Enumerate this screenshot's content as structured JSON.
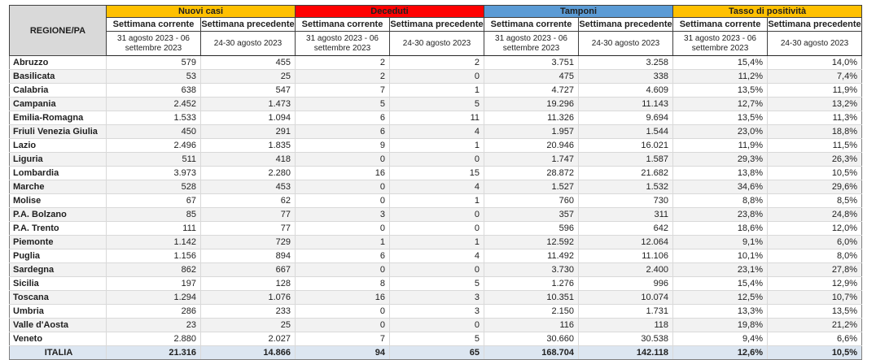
{
  "chart_data": {
    "type": "table",
    "region_header": "REGIONE/PA",
    "groups": [
      {
        "label": "Nuovi casi",
        "color": "#FFC000"
      },
      {
        "label": "Deceduti",
        "color": "#FF0000"
      },
      {
        "label": "Tamponi",
        "color": "#5B9BD5"
      },
      {
        "label": "Tasso di positività",
        "color": "#FFC000"
      }
    ],
    "subheaders": {
      "current": "Settimana corrente",
      "previous": "Settimana precedente"
    },
    "periods": {
      "current": "31 agosto 2023 - 06 settembre 2023",
      "previous": "24-30 agosto 2023"
    },
    "column_keys": [
      "nuovi-casi-corrente",
      "nuovi-casi-precedente",
      "deceduti-corrente",
      "deceduti-precedente",
      "tamponi-corrente",
      "tamponi-precedente",
      "tasso-positivita-corrente",
      "tasso-positivita-precedente"
    ],
    "rows": [
      {
        "region": "Abruzzo",
        "values": [
          "579",
          "455",
          "2",
          "2",
          "3.751",
          "3.258",
          "15,4%",
          "14,0%"
        ]
      },
      {
        "region": "Basilicata",
        "values": [
          "53",
          "25",
          "2",
          "0",
          "475",
          "338",
          "11,2%",
          "7,4%"
        ]
      },
      {
        "region": "Calabria",
        "values": [
          "638",
          "547",
          "7",
          "1",
          "4.727",
          "4.609",
          "13,5%",
          "11,9%"
        ]
      },
      {
        "region": "Campania",
        "values": [
          "2.452",
          "1.473",
          "5",
          "5",
          "19.296",
          "11.143",
          "12,7%",
          "13,2%"
        ]
      },
      {
        "region": "Emilia-Romagna",
        "values": [
          "1.533",
          "1.094",
          "6",
          "11",
          "11.326",
          "9.694",
          "13,5%",
          "11,3%"
        ]
      },
      {
        "region": "Friuli Venezia Giulia",
        "values": [
          "450",
          "291",
          "6",
          "4",
          "1.957",
          "1.544",
          "23,0%",
          "18,8%"
        ]
      },
      {
        "region": "Lazio",
        "values": [
          "2.496",
          "1.835",
          "9",
          "1",
          "20.946",
          "16.021",
          "11,9%",
          "11,5%"
        ]
      },
      {
        "region": "Liguria",
        "values": [
          "511",
          "418",
          "0",
          "0",
          "1.747",
          "1.587",
          "29,3%",
          "26,3%"
        ]
      },
      {
        "region": "Lombardia",
        "values": [
          "3.973",
          "2.280",
          "16",
          "15",
          "28.872",
          "21.682",
          "13,8%",
          "10,5%"
        ]
      },
      {
        "region": "Marche",
        "values": [
          "528",
          "453",
          "0",
          "4",
          "1.527",
          "1.532",
          "34,6%",
          "29,6%"
        ]
      },
      {
        "region": "Molise",
        "values": [
          "67",
          "62",
          "0",
          "1",
          "760",
          "730",
          "8,8%",
          "8,5%"
        ]
      },
      {
        "region": "P.A. Bolzano",
        "values": [
          "85",
          "77",
          "3",
          "0",
          "357",
          "311",
          "23,8%",
          "24,8%"
        ]
      },
      {
        "region": "P.A. Trento",
        "values": [
          "111",
          "77",
          "0",
          "0",
          "596",
          "642",
          "18,6%",
          "12,0%"
        ]
      },
      {
        "region": "Piemonte",
        "values": [
          "1.142",
          "729",
          "1",
          "1",
          "12.592",
          "12.064",
          "9,1%",
          "6,0%"
        ]
      },
      {
        "region": "Puglia",
        "values": [
          "1.156",
          "894",
          "6",
          "4",
          "11.492",
          "11.106",
          "10,1%",
          "8,0%"
        ]
      },
      {
        "region": "Sardegna",
        "values": [
          "862",
          "667",
          "0",
          "0",
          "3.730",
          "2.400",
          "23,1%",
          "27,8%"
        ]
      },
      {
        "region": "Sicilia",
        "values": [
          "197",
          "128",
          "8",
          "5",
          "1.276",
          "996",
          "15,4%",
          "12,9%"
        ]
      },
      {
        "region": "Toscana",
        "values": [
          "1.294",
          "1.076",
          "16",
          "3",
          "10.351",
          "10.074",
          "12,5%",
          "10,7%"
        ]
      },
      {
        "region": "Umbria",
        "values": [
          "286",
          "233",
          "0",
          "3",
          "2.150",
          "1.731",
          "13,3%",
          "13,5%"
        ]
      },
      {
        "region": "Valle d'Aosta",
        "values": [
          "23",
          "25",
          "0",
          "0",
          "116",
          "118",
          "19,8%",
          "21,2%"
        ]
      },
      {
        "region": "Veneto",
        "values": [
          "2.880",
          "2.027",
          "7",
          "5",
          "30.660",
          "30.538",
          "9,4%",
          "6,6%"
        ]
      }
    ],
    "total": {
      "region": "ITALIA",
      "values": [
        "21.316",
        "14.866",
        "94",
        "65",
        "168.704",
        "142.118",
        "12,6%",
        "10,5%"
      ]
    }
  },
  "colors": {
    "header_gray": "#D9D9D9",
    "row_stripe": "#F2F2F2",
    "total_row": "#DCE6F1"
  }
}
